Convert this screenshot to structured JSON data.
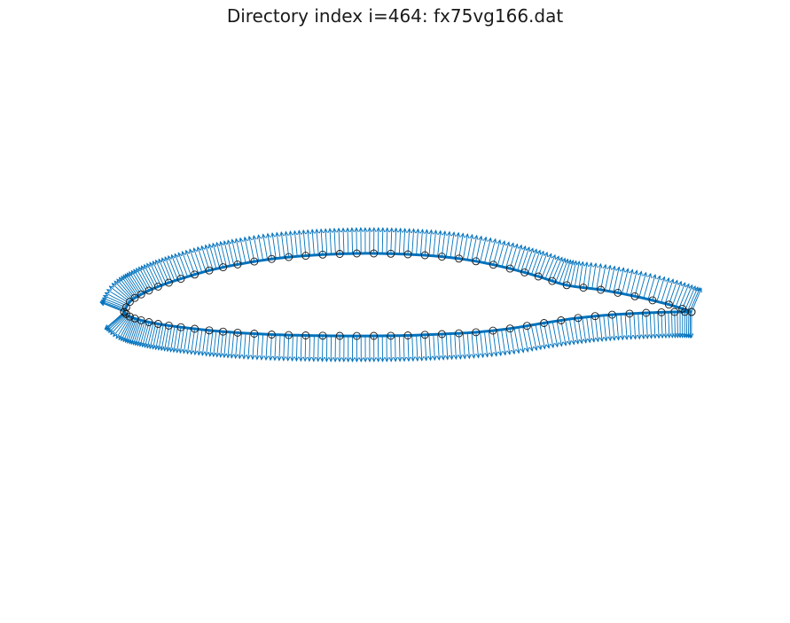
{
  "figure": {
    "title": "Directory index i=464: fx75vg166.dat"
  },
  "colors": {
    "outline": "#0072BD",
    "normal_vectors": "#0072BD",
    "markers": "#1a1a1a",
    "background": "#ffffff"
  },
  "chart_data": {
    "type": "scatter",
    "title": "Directory index i=464: fx75vg166.dat",
    "xlabel": "",
    "ylabel": "",
    "axes_visible": false,
    "grid": false,
    "xlim": [
      -0.02,
      1.02
    ],
    "ylim": [
      -0.45,
      0.55
    ],
    "upper_surface": {
      "x": [
        1.0,
        0.96,
        0.9,
        0.84,
        0.78,
        0.73,
        0.68,
        0.62,
        0.56,
        0.5,
        0.44,
        0.38,
        0.32,
        0.26,
        0.2,
        0.15,
        0.1,
        0.06,
        0.03,
        0.01,
        0.0
      ],
      "y": [
        0.0,
        0.016,
        0.034,
        0.048,
        0.058,
        0.077,
        0.094,
        0.11,
        0.12,
        0.125,
        0.127,
        0.126,
        0.122,
        0.115,
        0.103,
        0.09,
        0.072,
        0.055,
        0.038,
        0.022,
        0.0
      ]
    },
    "lower_surface": {
      "x": [
        0.0,
        0.01,
        0.03,
        0.06,
        0.1,
        0.15,
        0.2,
        0.26,
        0.32,
        0.38,
        0.44,
        0.5,
        0.56,
        0.62,
        0.68,
        0.74,
        0.8,
        0.86,
        0.92,
        0.97,
        1.0
      ],
      "y": [
        0.0,
        -0.01,
        -0.018,
        -0.026,
        -0.033,
        -0.04,
        -0.045,
        -0.049,
        -0.051,
        -0.052,
        -0.052,
        -0.051,
        -0.048,
        -0.044,
        -0.036,
        -0.024,
        -0.013,
        -0.006,
        -0.002,
        0.0,
        0.0
      ]
    },
    "normal_vector_length": 0.055
  }
}
